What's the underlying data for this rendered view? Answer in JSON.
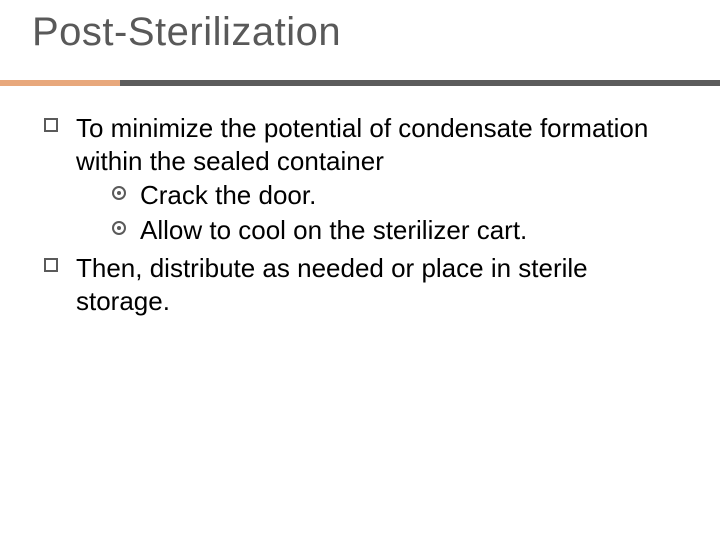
{
  "title": {
    "text": "Post-Sterilization",
    "color": "#595959",
    "fontsize": 40
  },
  "rule": {
    "accent_color": "#e8a87c",
    "accent_width": 120,
    "rest_color": "#5c5c5c"
  },
  "body": {
    "text_color": "#000000",
    "fontsize": 26,
    "items": [
      {
        "text": "To minimize the potential of condensate formation within the sealed container",
        "sub": [
          {
            "text": "Crack the door."
          },
          {
            "text": "Allow to cool on the sterilizer cart."
          }
        ]
      },
      {
        "text": "Then, distribute as needed or place in sterile storage.",
        "sub": []
      }
    ]
  }
}
